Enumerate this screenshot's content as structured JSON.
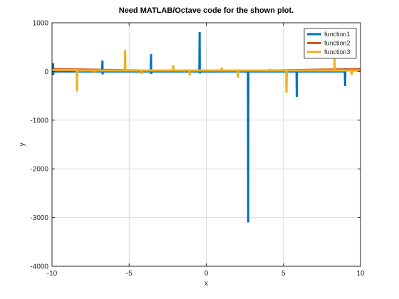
{
  "chart_data": {
    "type": "line",
    "title": "Need MATLAB/Octave code for the shown plot.",
    "xlabel": "x",
    "ylabel": "y",
    "xlim": [
      -10,
      10
    ],
    "ylim": [
      -4000,
      1000
    ],
    "xticks": [
      -10,
      -5,
      0,
      5,
      10
    ],
    "yticks": [
      -4000,
      -3000,
      -2000,
      -1000,
      0,
      1000
    ],
    "grid": true,
    "legend_position": "top-right",
    "series": [
      {
        "name": "function1",
        "color": "#0072BD",
        "style": "spikes",
        "points": [
          [
            -9.95,
            0
          ],
          [
            -9.93,
            170
          ],
          [
            -9.92,
            -70
          ],
          [
            -9.9,
            0
          ],
          [
            -6.75,
            0
          ],
          [
            -6.73,
            225
          ],
          [
            -6.72,
            -60
          ],
          [
            -6.7,
            0
          ],
          [
            -3.6,
            0
          ],
          [
            -3.58,
            355
          ],
          [
            -3.57,
            -50
          ],
          [
            -3.55,
            0
          ],
          [
            -0.45,
            0
          ],
          [
            -0.43,
            810
          ],
          [
            -0.42,
            -40
          ],
          [
            -0.4,
            0
          ],
          [
            2.7,
            0
          ],
          [
            2.72,
            -3100
          ],
          [
            2.73,
            40
          ],
          [
            2.75,
            0
          ],
          [
            5.85,
            0
          ],
          [
            5.87,
            -520
          ],
          [
            5.88,
            40
          ],
          [
            5.9,
            0
          ],
          [
            8.98,
            0
          ],
          [
            9.0,
            -300
          ],
          [
            9.02,
            60
          ],
          [
            9.04,
            0
          ]
        ]
      },
      {
        "name": "function2",
        "color": "#D95319",
        "style": "line",
        "points": [
          [
            -10,
            50
          ],
          [
            -5,
            25
          ],
          [
            0,
            0
          ],
          [
            5,
            25
          ],
          [
            10,
            50
          ]
        ]
      },
      {
        "name": "function3",
        "color": "#EDB120",
        "style": "spikes",
        "points": [
          [
            -10,
            0
          ],
          [
            -9.95,
            30
          ],
          [
            -8.4,
            30
          ],
          [
            -8.38,
            -410
          ],
          [
            -8.36,
            20
          ],
          [
            -7.3,
            20
          ],
          [
            -7.28,
            -40
          ],
          [
            -7.26,
            20
          ],
          [
            -5.28,
            20
          ],
          [
            -5.26,
            440
          ],
          [
            -5.24,
            20
          ],
          [
            -4.2,
            20
          ],
          [
            -4.18,
            -50
          ],
          [
            -4.16,
            20
          ],
          [
            -2.16,
            20
          ],
          [
            -2.14,
            130
          ],
          [
            -2.12,
            20
          ],
          [
            -1.1,
            20
          ],
          [
            -1.08,
            -80
          ],
          [
            -1.06,
            20
          ],
          [
            0.97,
            20
          ],
          [
            0.99,
            80
          ],
          [
            1.01,
            20
          ],
          [
            2.03,
            20
          ],
          [
            2.05,
            -130
          ],
          [
            2.07,
            20
          ],
          [
            4.1,
            20
          ],
          [
            4.12,
            50
          ],
          [
            4.14,
            20
          ],
          [
            5.18,
            20
          ],
          [
            5.2,
            -440
          ],
          [
            5.22,
            20
          ],
          [
            8.3,
            20
          ],
          [
            8.32,
            260
          ],
          [
            8.34,
            20
          ],
          [
            9.4,
            20
          ],
          [
            9.42,
            -70
          ],
          [
            9.44,
            20
          ],
          [
            10,
            20
          ]
        ]
      }
    ]
  }
}
